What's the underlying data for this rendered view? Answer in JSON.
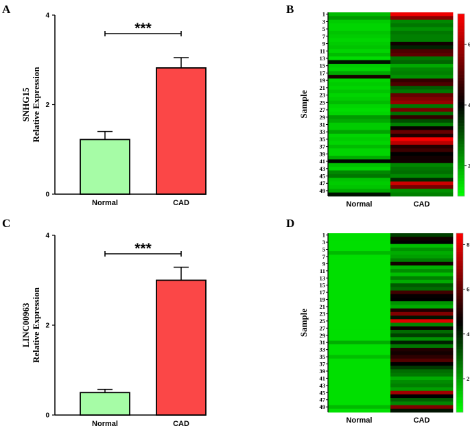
{
  "chart_data": [
    {
      "panel": "A",
      "type": "bar",
      "ylabel": [
        "SNHG15",
        "Relative Expression"
      ],
      "categories": [
        "Normal",
        "CAD"
      ],
      "values": [
        1.22,
        2.82
      ],
      "errors": [
        0.18,
        0.23
      ],
      "ylim": [
        0,
        4
      ],
      "yticks": [
        "0",
        "2",
        "4"
      ],
      "significance": "***",
      "colors": [
        "#a6fca6",
        "#fb4747"
      ]
    },
    {
      "panel": "B",
      "type": "heatmap",
      "ylabel": "Sample",
      "columns": [
        "Normal",
        "CAD"
      ],
      "row_labels": [
        "1",
        "3",
        "5",
        "7",
        "9",
        "11",
        "13",
        "15",
        "17",
        "19",
        "21",
        "23",
        "25",
        "27",
        "29",
        "31",
        "33",
        "35",
        "37",
        "39",
        "41",
        "43",
        "45",
        "47",
        "49"
      ],
      "colorbar": {
        "min": 1,
        "max": 7,
        "ticks": [
          "2",
          "4",
          "6"
        ]
      },
      "normal": [
        1.8,
        2.2,
        1.6,
        1.5,
        1.5,
        1.7,
        1.6,
        1.5,
        1.6,
        1.7,
        1.5,
        1.8,
        1.4,
        3.8,
        1.6,
        1.5,
        2.0,
        4.3,
        1.5,
        1.6,
        1.5,
        1.7,
        1.5,
        1.6,
        1.8,
        1.5,
        1.4,
        1.5,
        2.2,
        2.0,
        1.6,
        1.6,
        2.1,
        1.5,
        1.6,
        1.5,
        1.8,
        1.5,
        1.5,
        2.0,
        3.9,
        1.7,
        1.5,
        2.4,
        2.6,
        1.7,
        1.6,
        1.7,
        2.0,
        3.8
      ],
      "cad": [
        6.8,
        5.6,
        2.4,
        2.6,
        2.3,
        2.6,
        2.5,
        2.5,
        4.2,
        3.6,
        4.9,
        5.1,
        2.6,
        2.8,
        2.0,
        2.4,
        2.5,
        2.3,
        4.6,
        4.9,
        2.9,
        2.6,
        5.2,
        5.5,
        5.8,
        2.6,
        5.4,
        2.7,
        4.6,
        3.1,
        2.5,
        4.1,
        5.2,
        4.4,
        6.9,
        6.2,
        4.4,
        4.7,
        4.0,
        4.2,
        4.2,
        2.4,
        2.6,
        2.7,
        2.4,
        3.5,
        6.4,
        5.4,
        2.3,
        2.5
      ]
    },
    {
      "panel": "C",
      "type": "bar",
      "ylabel": [
        "LINC00963",
        "Relative Expression"
      ],
      "categories": [
        "Normal",
        "CAD"
      ],
      "values": [
        0.5,
        3.0
      ],
      "errors": [
        0.07,
        0.29
      ],
      "ylim": [
        0,
        4
      ],
      "yticks": [
        "0",
        "2",
        "4"
      ],
      "significance": "***",
      "colors": [
        "#a6fca6",
        "#fb4747"
      ]
    },
    {
      "panel": "D",
      "type": "heatmap",
      "ylabel": "Sample",
      "columns": [
        "Normal",
        "CAD"
      ],
      "row_labels": [
        "1",
        "3",
        "5",
        "7",
        "9",
        "11",
        "13",
        "15",
        "17",
        "19",
        "21",
        "23",
        "25",
        "27",
        "29",
        "31",
        "33",
        "35",
        "37",
        "39",
        "41",
        "43",
        "45",
        "47",
        "49"
      ],
      "colorbar": {
        "min": 0.5,
        "max": 8.5,
        "ticks": [
          "2",
          "4",
          "6",
          "8"
        ]
      },
      "normal": [
        1.0,
        1.0,
        1.0,
        1.0,
        1.0,
        1.6,
        1.0,
        1.0,
        1.0,
        1.0,
        1.0,
        1.0,
        1.0,
        1.0,
        1.0,
        1.0,
        1.0,
        1.0,
        1.0,
        1.0,
        1.0,
        1.0,
        1.0,
        1.0,
        1.0,
        1.0,
        1.0,
        1.0,
        1.0,
        1.0,
        1.8,
        1.0,
        1.0,
        1.0,
        1.5,
        1.0,
        1.0,
        1.0,
        1.0,
        1.0,
        1.0,
        1.0,
        1.0,
        1.0,
        1.0,
        1.0,
        1.0,
        1.0,
        1.6,
        1.0
      ],
      "cad": [
        3.5,
        4.8,
        4.5,
        1.5,
        2.2,
        1.8,
        2.0,
        2.5,
        4.8,
        1.7,
        2.3,
        1.5,
        2.5,
        1.8,
        3.1,
        2.8,
        5.5,
        4.6,
        4.5,
        2.2,
        1.8,
        5.0,
        6.5,
        4.2,
        8.0,
        2.4,
        4.7,
        2.8,
        3.5,
        2.2,
        4.0,
        2.6,
        5.0,
        4.8,
        5.2,
        5.8,
        4.5,
        3.6,
        2.8,
        2.6,
        1.8,
        2.3,
        2.5,
        2.0,
        7.0,
        4.5,
        3.0,
        2.4,
        6.5,
        4.2
      ]
    }
  ]
}
